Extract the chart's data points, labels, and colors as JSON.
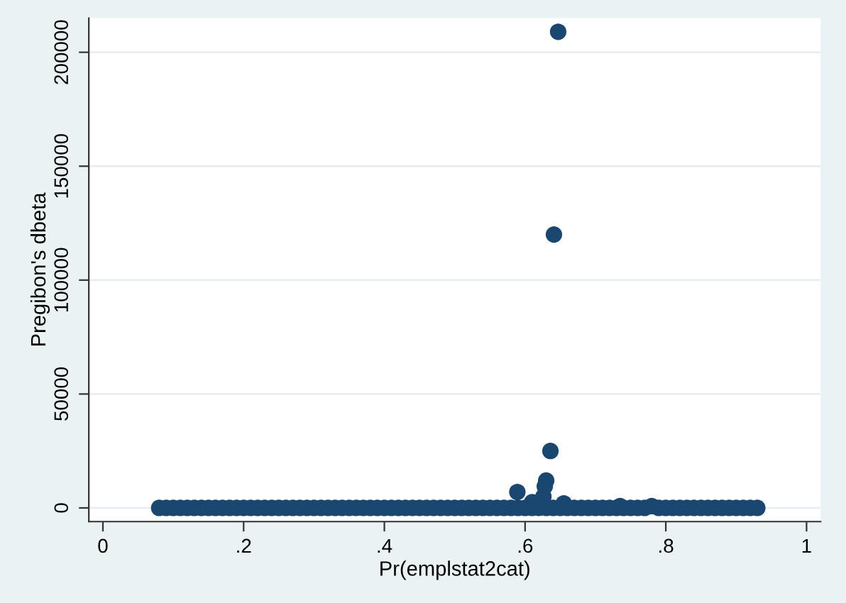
{
  "chart_data": {
    "type": "scatter",
    "xlabel": "Pr(emplstat2cat)",
    "ylabel": "Pregibon's dbeta",
    "xlim": [
      -0.02,
      1.02
    ],
    "ylim": [
      -6000,
      215000
    ],
    "xticks": [
      0,
      {
        "value": 0.2,
        "label": ".2"
      },
      {
        "value": 0.4,
        "label": ".4"
      },
      {
        "value": 0.6,
        "label": ".6"
      },
      {
        "value": 0.8,
        "label": ".8"
      },
      1
    ],
    "yticks": [
      0,
      50000,
      100000,
      150000,
      200000
    ],
    "grid": "y",
    "marker": "circle",
    "legend": false,
    "series": [
      {
        "color": "#1a476f",
        "x": [
          0.08,
          0.09,
          0.1,
          0.11,
          0.12,
          0.13,
          0.14,
          0.15,
          0.16,
          0.17,
          0.18,
          0.19,
          0.2,
          0.21,
          0.22,
          0.23,
          0.24,
          0.25,
          0.26,
          0.27,
          0.28,
          0.29,
          0.3,
          0.31,
          0.32,
          0.33,
          0.34,
          0.35,
          0.36,
          0.37,
          0.38,
          0.39,
          0.4,
          0.41,
          0.42,
          0.43,
          0.44,
          0.45,
          0.46,
          0.47,
          0.48,
          0.49,
          0.5,
          0.51,
          0.52,
          0.53,
          0.54,
          0.55,
          0.56,
          0.57,
          0.58,
          0.59,
          0.6,
          0.61,
          0.62,
          0.63,
          0.64,
          0.65,
          0.66,
          0.67,
          0.68,
          0.69,
          0.7,
          0.71,
          0.72,
          0.73,
          0.74,
          0.75,
          0.76,
          0.77,
          0.79,
          0.8,
          0.81,
          0.82,
          0.83,
          0.84,
          0.85,
          0.86,
          0.87,
          0.88,
          0.89,
          0.9,
          0.91,
          0.92,
          0.93,
          0.589,
          0.61,
          0.626,
          0.628,
          0.63,
          0.636,
          0.641,
          0.647,
          0.655,
          0.735,
          0.78
        ],
        "values": [
          0,
          0,
          0,
          0,
          0,
          0,
          0,
          0,
          0,
          0,
          0,
          0,
          0,
          0,
          0,
          0,
          0,
          0,
          0,
          0,
          0,
          0,
          0,
          0,
          0,
          0,
          0,
          0,
          0,
          0,
          0,
          0,
          0,
          0,
          0,
          0,
          0,
          0,
          0,
          0,
          0,
          0,
          0,
          0,
          0,
          0,
          0,
          0,
          0,
          0,
          0,
          0,
          0,
          0,
          0,
          0,
          0,
          0,
          0,
          0,
          0,
          0,
          0,
          0,
          0,
          0,
          0,
          0,
          0,
          0,
          0,
          0,
          0,
          0,
          0,
          0,
          0,
          0,
          0,
          0,
          0,
          0,
          0,
          0,
          0,
          7000,
          2500,
          5000,
          9500,
          12000,
          25000,
          120000,
          209000,
          2000,
          800,
          800
        ]
      }
    ]
  }
}
